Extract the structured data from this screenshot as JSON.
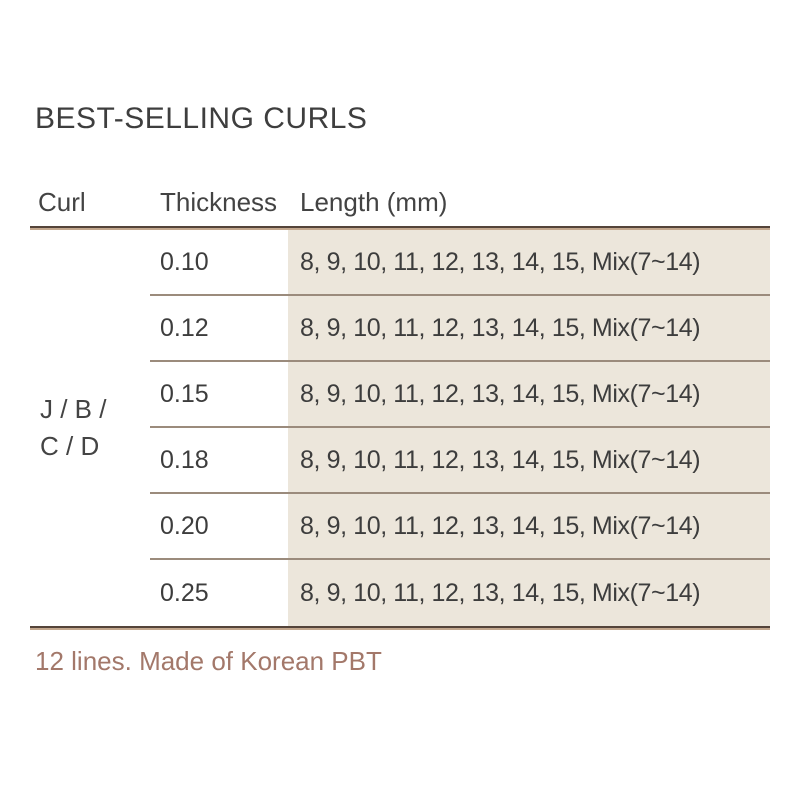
{
  "title": "BEST-SELLING CURLS",
  "table": {
    "headers": [
      "Curl",
      "Thickness",
      "Length (mm)"
    ],
    "curl_group": [
      "J / B /",
      "C / D"
    ],
    "rows": [
      {
        "thickness": "0.10",
        "lengths": "8, 9, 10, 11, 12, 13, 14, 15, Mix(7~14)"
      },
      {
        "thickness": "0.12",
        "lengths": "8, 9, 10, 11, 12, 13, 14, 15, Mix(7~14)"
      },
      {
        "thickness": "0.15",
        "lengths": "8, 9, 10, 11, 12, 13, 14, 15, Mix(7~14)"
      },
      {
        "thickness": "0.18",
        "lengths": "8, 9, 10, 11, 12, 13, 14, 15, Mix(7~14)"
      },
      {
        "thickness": "0.20",
        "lengths": "8, 9, 10, 11, 12, 13, 14, 15, Mix(7~14)"
      },
      {
        "thickness": "0.25",
        "lengths": "8, 9, 10, 11, 12, 13, 14, 15, Mix(7~14)"
      }
    ]
  },
  "footer": {
    "note": "12 lines. Made of Korean PBT"
  },
  "colors": {
    "text": "#3d3d3d",
    "accent_brown": "#a3786a",
    "cell_background": "#ece6db",
    "rule_dark": "#54443a",
    "rule_tan": "#c3a78d",
    "row_divider": "#9b8b7c"
  }
}
